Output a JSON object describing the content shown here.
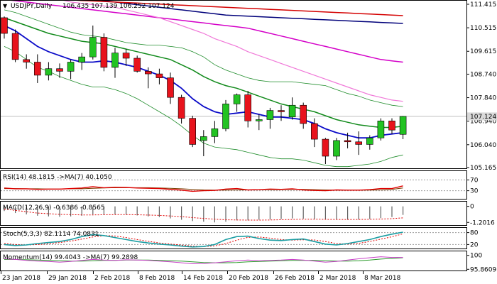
{
  "chart_data": {
    "type": "candlestick",
    "symbol": "USDJPY,Daily",
    "ohlc_text": "106.435 107.139 106.252 107.124",
    "current_price": 107.124,
    "current_price_label": "107.124",
    "price_axis": {
      "ylim": [
        105.165,
        111.415
      ],
      "ticks": [
        "111.415",
        "110.515",
        "109.615",
        "108.740",
        "107.840",
        "106.940",
        "106.040",
        "105.165"
      ]
    },
    "x_labels": [
      "23 Jan 2018",
      "29 Jan 2018",
      "2 Feb 2018",
      "8 Feb 2018",
      "14 Feb 2018",
      "20 Feb 2018",
      "26 Feb 2018",
      "2 Mar 2018",
      "8 Mar 2018"
    ],
    "candles": [
      {
        "o": 110.9,
        "h": 110.95,
        "l": 110.1,
        "c": 110.3
      },
      {
        "o": 110.3,
        "h": 110.45,
        "l": 109.2,
        "c": 109.3
      },
      {
        "o": 109.3,
        "h": 109.5,
        "l": 108.95,
        "c": 109.2
      },
      {
        "o": 109.2,
        "h": 109.5,
        "l": 108.4,
        "c": 108.7
      },
      {
        "o": 108.7,
        "h": 109.2,
        "l": 108.5,
        "c": 108.95
      },
      {
        "o": 108.95,
        "h": 109.15,
        "l": 108.6,
        "c": 108.85
      },
      {
        "o": 108.85,
        "h": 109.3,
        "l": 108.55,
        "c": 109.2
      },
      {
        "o": 109.2,
        "h": 109.55,
        "l": 108.9,
        "c": 109.4
      },
      {
        "o": 109.4,
        "h": 110.6,
        "l": 109.3,
        "c": 110.15
      },
      {
        "o": 110.15,
        "h": 110.3,
        "l": 108.85,
        "c": 109.0
      },
      {
        "o": 109.0,
        "h": 109.75,
        "l": 108.6,
        "c": 109.55
      },
      {
        "o": 109.55,
        "h": 109.7,
        "l": 109.05,
        "c": 109.35
      },
      {
        "o": 109.35,
        "h": 109.45,
        "l": 108.8,
        "c": 108.85
      },
      {
        "o": 108.85,
        "h": 109.0,
        "l": 108.2,
        "c": 108.75
      },
      {
        "o": 108.75,
        "h": 108.95,
        "l": 108.35,
        "c": 108.6
      },
      {
        "o": 108.6,
        "h": 108.8,
        "l": 107.6,
        "c": 107.85
      },
      {
        "o": 107.85,
        "h": 107.95,
        "l": 106.85,
        "c": 107.05
      },
      {
        "o": 107.05,
        "h": 107.15,
        "l": 105.95,
        "c": 106.05
      },
      {
        "o": 106.2,
        "h": 106.6,
        "l": 105.6,
        "c": 106.35
      },
      {
        "o": 106.35,
        "h": 106.95,
        "l": 106.1,
        "c": 106.65
      },
      {
        "o": 106.65,
        "h": 107.75,
        "l": 106.55,
        "c": 107.6
      },
      {
        "o": 107.6,
        "h": 108.0,
        "l": 107.3,
        "c": 107.95
      },
      {
        "o": 107.95,
        "h": 108.1,
        "l": 106.7,
        "c": 106.95
      },
      {
        "o": 106.95,
        "h": 107.2,
        "l": 106.6,
        "c": 107.0
      },
      {
        "o": 107.0,
        "h": 107.45,
        "l": 106.65,
        "c": 107.35
      },
      {
        "o": 107.35,
        "h": 107.55,
        "l": 106.95,
        "c": 107.3
      },
      {
        "o": 107.1,
        "h": 107.85,
        "l": 107.0,
        "c": 107.55
      },
      {
        "o": 107.55,
        "h": 107.65,
        "l": 106.65,
        "c": 106.85
      },
      {
        "o": 106.85,
        "h": 107.05,
        "l": 105.95,
        "c": 106.25
      },
      {
        "o": 106.25,
        "h": 106.3,
        "l": 105.3,
        "c": 105.6
      },
      {
        "o": 105.6,
        "h": 106.3,
        "l": 105.45,
        "c": 106.2
      },
      {
        "o": 106.2,
        "h": 106.5,
        "l": 105.9,
        "c": 106.15
      },
      {
        "o": 106.15,
        "h": 106.55,
        "l": 105.65,
        "c": 106.05
      },
      {
        "o": 106.05,
        "h": 106.4,
        "l": 105.85,
        "c": 106.3
      },
      {
        "o": 106.3,
        "h": 107.05,
        "l": 106.2,
        "c": 106.95
      },
      {
        "o": 106.95,
        "h": 107.05,
        "l": 106.45,
        "c": 106.6
      },
      {
        "o": 106.435,
        "h": 107.139,
        "l": 106.252,
        "c": 107.124
      }
    ],
    "price_lines": {
      "ma_blue_dark": [
        110.6,
        110.4,
        110.1,
        109.8,
        109.6,
        109.45,
        109.3,
        109.2,
        109.2,
        109.25,
        109.2,
        109.1,
        109.0,
        108.85,
        108.7,
        108.5,
        108.2,
        107.8,
        107.5,
        107.3,
        107.2,
        107.25,
        107.3,
        107.2,
        107.1,
        107.1,
        107.05,
        107.0,
        106.85,
        106.65,
        106.5,
        106.4,
        106.3,
        106.3,
        106.4,
        106.45,
        106.5
      ],
      "ma_green_dark": [
        110.9,
        110.75,
        110.6,
        110.45,
        110.3,
        110.2,
        110.1,
        110.0,
        109.95,
        109.9,
        109.8,
        109.7,
        109.6,
        109.5,
        109.4,
        109.3,
        109.1,
        108.9,
        108.65,
        108.45,
        108.3,
        108.2,
        108.05,
        107.9,
        107.75,
        107.6,
        107.5,
        107.4,
        107.3,
        107.15,
        107.0,
        106.9,
        106.8,
        106.75,
        106.7,
        106.7,
        106.75
      ],
      "band_upper": [
        111.2,
        111.1,
        110.95,
        110.8,
        110.65,
        110.5,
        110.35,
        110.25,
        110.2,
        110.15,
        110.05,
        109.95,
        109.9,
        109.85,
        109.85,
        109.8,
        109.75,
        109.6,
        109.4,
        109.1,
        108.9,
        108.75,
        108.6,
        108.5,
        108.45,
        108.45,
        108.45,
        108.4,
        108.35,
        108.3,
        108.15,
        108.0,
        107.9,
        107.75,
        107.65,
        107.55,
        107.5
      ],
      "band_lower": [
        109.8,
        109.6,
        109.3,
        109.0,
        108.85,
        108.65,
        108.5,
        108.35,
        108.25,
        108.25,
        108.15,
        108.0,
        107.8,
        107.55,
        107.3,
        107.05,
        106.75,
        106.4,
        106.1,
        105.95,
        105.9,
        105.85,
        105.75,
        105.65,
        105.55,
        105.5,
        105.5,
        105.45,
        105.35,
        105.25,
        105.2,
        105.2,
        105.25,
        105.3,
        105.4,
        105.55,
        105.65
      ],
      "ma_pink": [
        111.9,
        111.85,
        111.8,
        111.75,
        111.7,
        111.6,
        111.5,
        111.45,
        111.4,
        111.35,
        111.3,
        111.2,
        111.1,
        111.0,
        110.9,
        110.75,
        110.6,
        110.45,
        110.3,
        110.1,
        109.95,
        109.8,
        109.6,
        109.45,
        109.3,
        109.15,
        109.0,
        108.85,
        108.7,
        108.55,
        108.4,
        108.25,
        108.1,
        107.95,
        107.85,
        107.75,
        107.7
      ],
      "ma_magenta": [
        111.6,
        111.55,
        111.5,
        111.45,
        111.4,
        111.35,
        111.3,
        111.25,
        111.2,
        111.15,
        111.1,
        111.05,
        111.0,
        110.95,
        110.9,
        110.85,
        110.8,
        110.75,
        110.7,
        110.65,
        110.6,
        110.55,
        110.5,
        110.4,
        110.3,
        110.2,
        110.1,
        110.0,
        109.9,
        109.8,
        109.7,
        109.6,
        109.5,
        109.4,
        109.3,
        109.25,
        109.2
      ],
      "ma_red": [
        111.7,
        111.68,
        111.66,
        111.64,
        111.62,
        111.6,
        111.58,
        111.56,
        111.54,
        111.52,
        111.5,
        111.48,
        111.46,
        111.44,
        111.42,
        111.4,
        111.38,
        111.36,
        111.34,
        111.32,
        111.3,
        111.28,
        111.26,
        111.24,
        111.22,
        111.2,
        111.18,
        111.16,
        111.14,
        111.12,
        111.1,
        111.08,
        111.06,
        111.04,
        111.02,
        111.0,
        110.98
      ],
      "ma_navy": [
        112.0,
        111.95,
        111.9,
        111.85,
        111.8,
        111.75,
        111.7,
        111.65,
        111.6,
        111.55,
        111.5,
        111.45,
        111.4,
        111.35,
        111.3,
        111.25,
        111.2,
        111.15,
        111.1,
        111.05,
        111.0,
        110.98,
        110.96,
        110.94,
        110.92,
        110.9,
        110.88,
        110.86,
        110.84,
        110.82,
        110.8,
        110.78,
        110.76,
        110.74,
        110.72,
        110.7,
        110.68
      ]
    },
    "rsi": {
      "label": "RSI(14) 48.1815 ->MA(7) 40.1050",
      "ylim": [
        0,
        100
      ],
      "ticks": [
        "70",
        "30"
      ],
      "rsi": [
        40,
        37,
        37,
        35,
        36,
        36,
        38,
        40,
        45,
        41,
        43,
        42,
        40,
        39,
        38,
        35,
        32,
        28,
        30,
        31,
        36,
        38,
        33,
        34,
        36,
        35,
        37,
        33,
        31,
        30,
        33,
        32,
        32,
        34,
        38,
        38,
        48
      ],
      "ma": [
        38,
        38,
        37,
        37,
        36,
        36,
        37,
        37,
        39,
        40,
        41,
        41,
        41,
        41,
        40,
        39,
        37,
        35,
        33,
        32,
        32,
        33,
        33,
        34,
        34,
        34,
        35,
        35,
        34,
        33,
        32,
        32,
        32,
        32,
        33,
        35,
        40
      ]
    },
    "macd": {
      "label": "MACD(12,26,9) -0.6386 -0.8565",
      "ylim": [
        -1.4,
        0.3
      ],
      "ticks": [
        "0",
        "-1.2016"
      ],
      "hist": [
        -0.35,
        -0.5,
        -0.6,
        -0.7,
        -0.75,
        -0.78,
        -0.75,
        -0.7,
        -0.6,
        -0.62,
        -0.6,
        -0.62,
        -0.68,
        -0.75,
        -0.8,
        -0.9,
        -1.0,
        -1.1,
        -1.15,
        -1.2,
        -1.15,
        -1.05,
        -1.05,
        -1.0,
        -0.98,
        -0.95,
        -0.9,
        -0.92,
        -0.95,
        -1.0,
        -1.0,
        -1.0,
        -0.98,
        -0.95,
        -0.88,
        -0.8,
        -0.64
      ],
      "signal": [
        -0.2,
        -0.3,
        -0.4,
        -0.5,
        -0.55,
        -0.6,
        -0.62,
        -0.64,
        -0.64,
        -0.63,
        -0.62,
        -0.62,
        -0.63,
        -0.65,
        -0.68,
        -0.72,
        -0.77,
        -0.84,
        -0.9,
        -0.96,
        -1.0,
        -1.02,
        -1.03,
        -1.03,
        -1.02,
        -1.0,
        -0.98,
        -0.96,
        -0.96,
        -0.97,
        -0.98,
        -0.98,
        -0.98,
        -0.97,
        -0.95,
        -0.92,
        -0.86
      ]
    },
    "stoch": {
      "label": "Stoch(5,3,3) 82.1114 74.0831",
      "ylim": [
        0,
        100
      ],
      "ticks": [
        "80",
        "20"
      ],
      "k": [
        20,
        15,
        18,
        25,
        30,
        35,
        45,
        60,
        70,
        65,
        55,
        45,
        35,
        28,
        22,
        18,
        12,
        8,
        10,
        20,
        45,
        60,
        62,
        50,
        42,
        40,
        45,
        48,
        35,
        22,
        18,
        25,
        35,
        45,
        60,
        72,
        82
      ],
      "d": [
        25,
        20,
        18,
        20,
        24,
        30,
        37,
        47,
        58,
        65,
        63,
        55,
        45,
        36,
        28,
        22,
        17,
        12,
        10,
        13,
        25,
        42,
        56,
        58,
        52,
        45,
        42,
        44,
        43,
        35,
        25,
        22,
        26,
        35,
        47,
        59,
        74
      ]
    },
    "momentum": {
      "label": "Momentum(14) 99.4043 ->MA(7) 99.2898",
      "ticks": [
        "100",
        "95.8609"
      ],
      "ylim": [
        95.5,
        101.0
      ],
      "mom": [
        99.0,
        98.8,
        98.5,
        98.3,
        98.2,
        98.0,
        98.2,
        98.5,
        98.8,
        98.6,
        98.5,
        98.7,
        98.6,
        98.5,
        98.3,
        98.1,
        97.8,
        97.5,
        97.6,
        97.8,
        98.1,
        98.4,
        98.6,
        98.4,
        98.5,
        98.6,
        98.8,
        98.6,
        98.3,
        98.0,
        98.2,
        98.6,
        99.0,
        99.3,
        99.6,
        99.4,
        99.4
      ],
      "ma": [
        98.8,
        98.8,
        98.7,
        98.6,
        98.5,
        98.4,
        98.3,
        98.3,
        98.4,
        98.5,
        98.5,
        98.6,
        98.6,
        98.6,
        98.5,
        98.4,
        98.3,
        98.1,
        97.9,
        97.8,
        97.8,
        97.9,
        98.1,
        98.2,
        98.3,
        98.4,
        98.5,
        98.5,
        98.5,
        98.4,
        98.3,
        98.3,
        98.4,
        98.6,
        98.9,
        99.1,
        99.3
      ]
    }
  },
  "colors": {
    "up": "#22c322",
    "down": "#e8131c",
    "ma_blue_dark": "#0a0ac8",
    "ma_green_dark": "#118a1b",
    "band": "#1e8c2a",
    "ma_pink": "#f078d8",
    "ma_magenta": "#d400c8",
    "ma_red": "#d40000",
    "ma_navy": "#00007a",
    "rsi": "#e00000",
    "rsi_ma": "#7a3d00",
    "stoch_k": "#1b9ea3",
    "stoch_d": "#e00000",
    "mom": "#c840c8",
    "mom_ma": "#2a9a2a",
    "price_box": "#d9d9d9"
  }
}
